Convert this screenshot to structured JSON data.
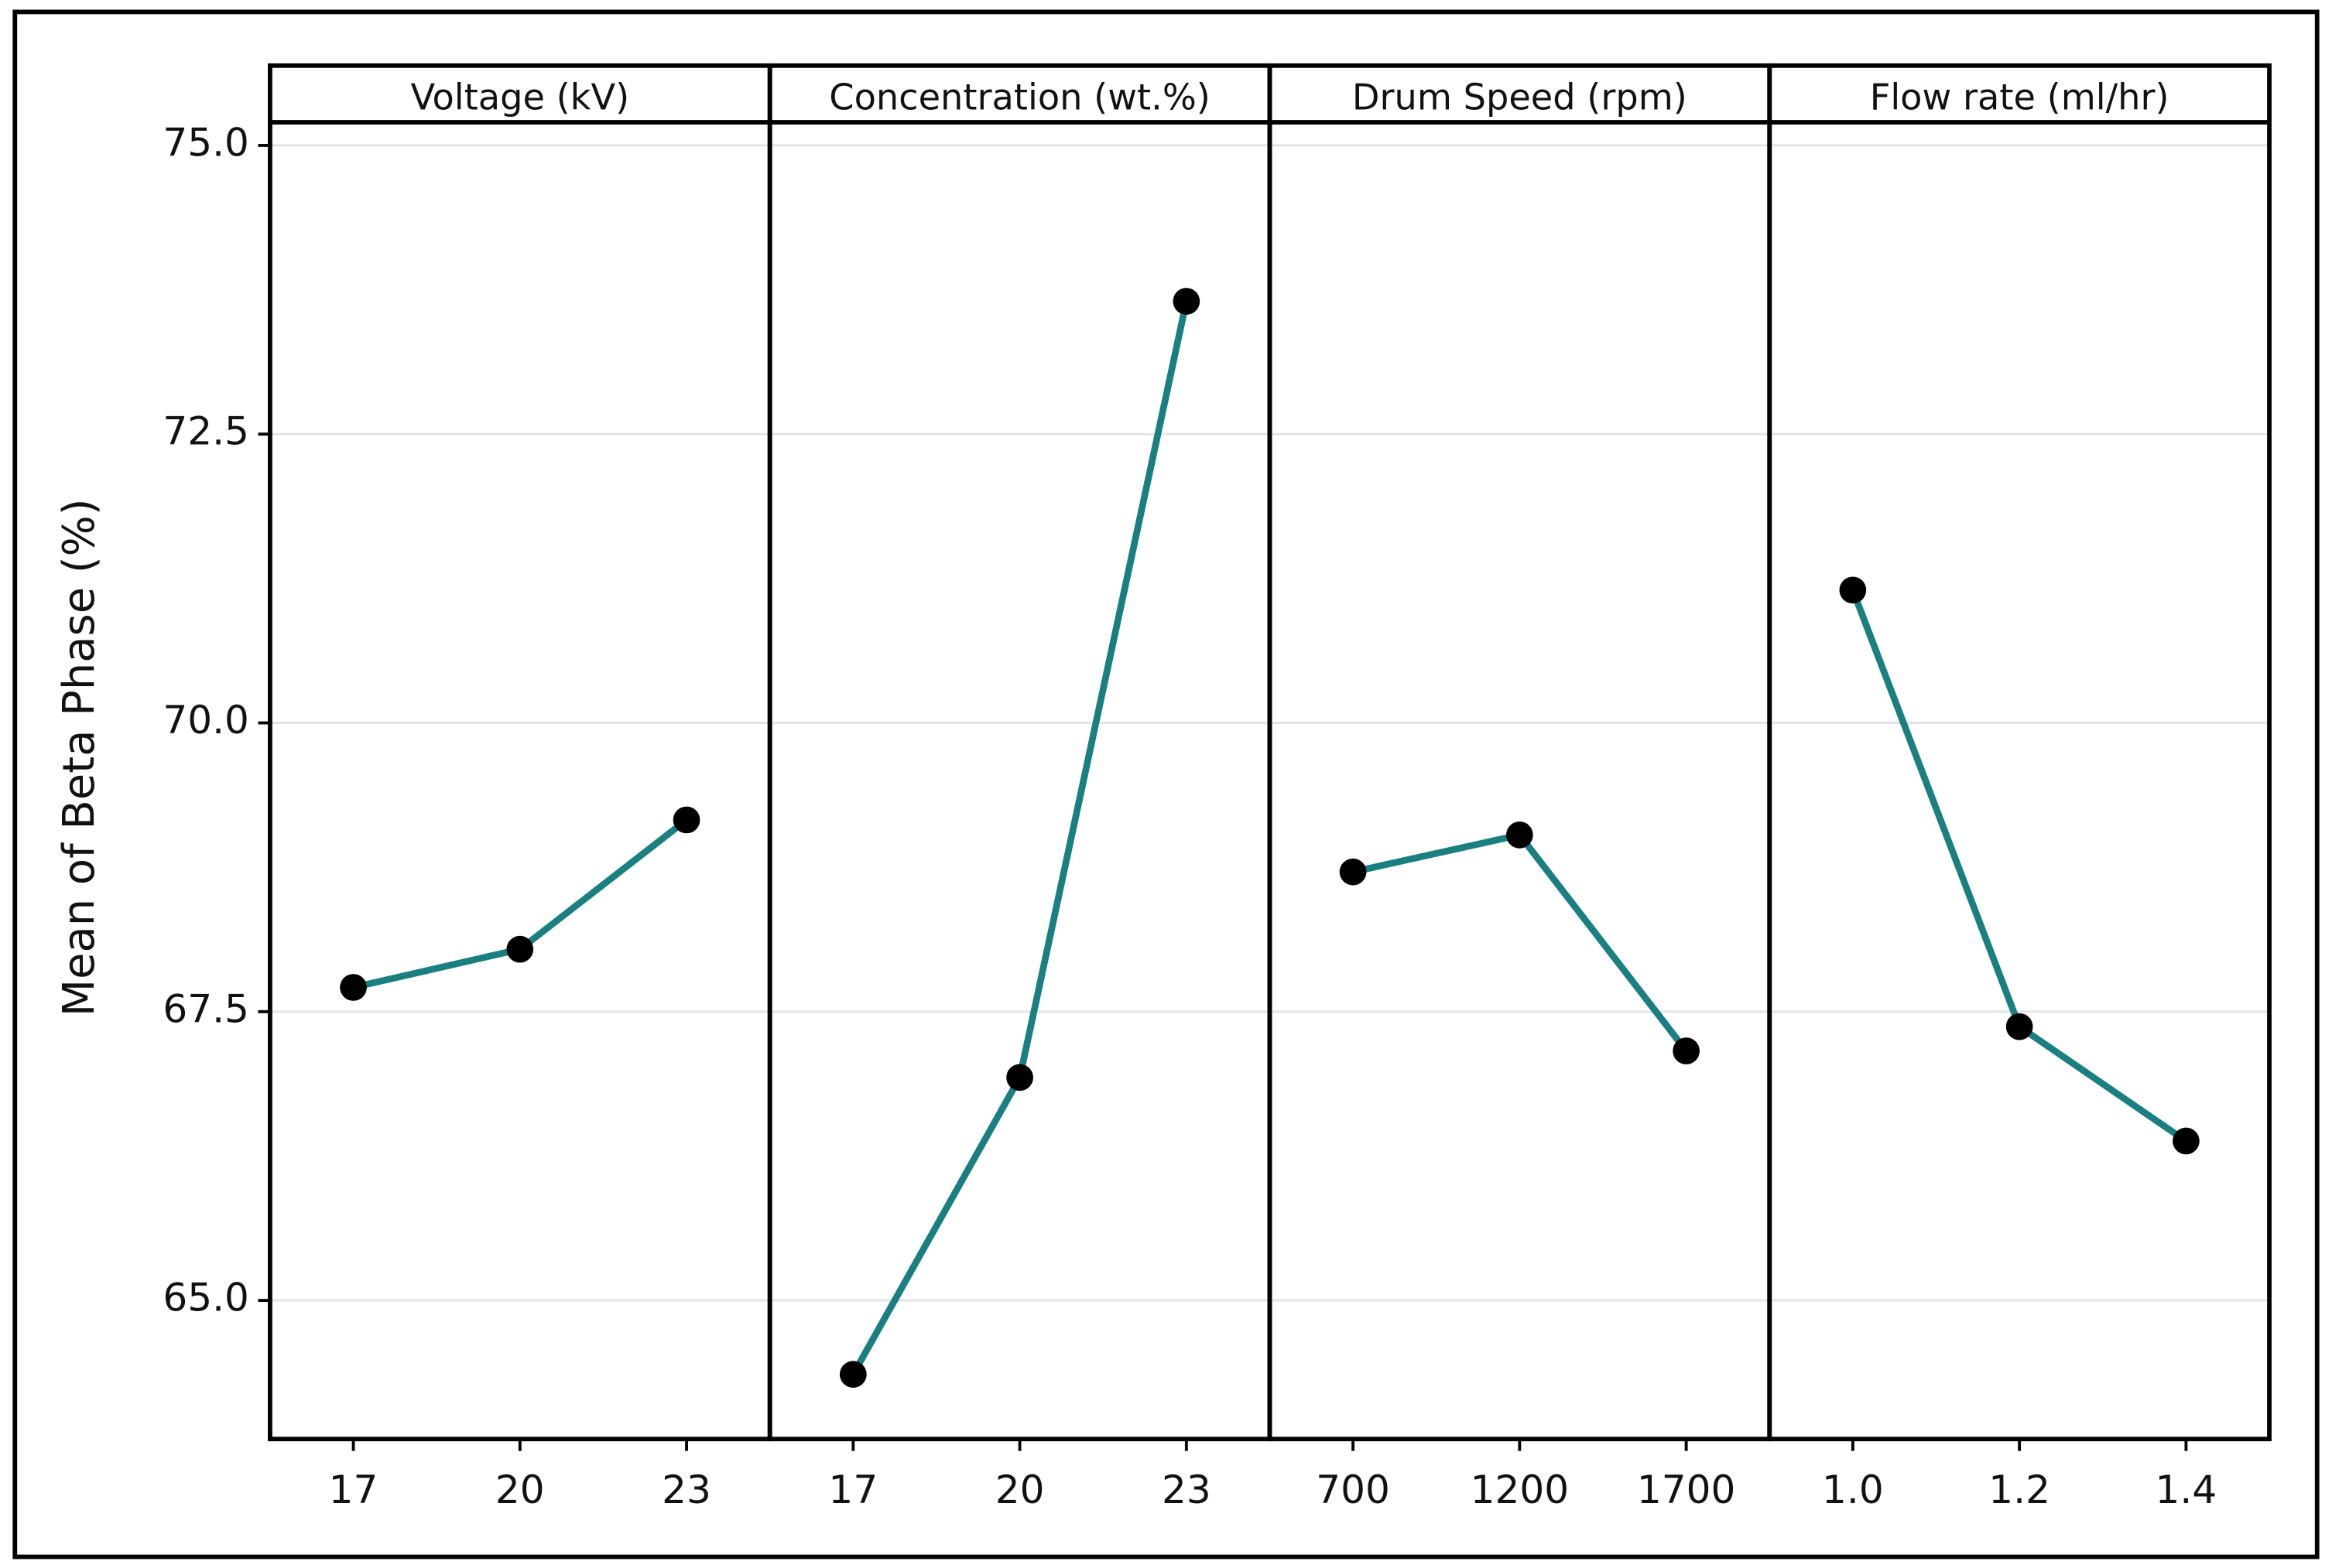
{
  "chart_data": [
    {
      "type": "line",
      "title": "Voltage (kV)",
      "ylabel": "Mean of Beta Phase (%)",
      "categories": [
        "17",
        "20",
        "23"
      ],
      "values": [
        67.71,
        68.04,
        69.16
      ],
      "color": "#1a7f80",
      "marker_color": "#000000",
      "ylim": [
        63.8,
        75.2
      ],
      "yticks": [
        {
          "value": 75,
          "label": "75.0"
        },
        72.5,
        {
          "value": 70,
          "label": "70.0"
        },
        67.5,
        {
          "value": 65,
          "label": "65.0"
        }
      ],
      "grid": true
    },
    {
      "type": "line",
      "title": "Concentration (wt.%)",
      "categories": [
        "17",
        "20",
        "23"
      ],
      "values": [
        64.36,
        66.93,
        73.65
      ],
      "color": "#1a7f80",
      "marker_color": "#000000",
      "ylim": [
        63.8,
        75.2
      ],
      "yticks": [
        {
          "value": 75,
          "label": "75.0"
        },
        72.5,
        {
          "value": 70,
          "label": "70.0"
        },
        67.5,
        {
          "value": 65,
          "label": "65.0"
        }
      ],
      "grid": true
    },
    {
      "type": "line",
      "title": "Drum Speed (rpm)",
      "categories": [
        "700",
        "1200",
        "1700"
      ],
      "values": [
        68.71,
        69.03,
        67.16
      ],
      "color": "#1a7f80",
      "marker_color": "#000000",
      "ylim": [
        63.8,
        75.2
      ],
      "yticks": [
        {
          "value": 75,
          "label": "75.0"
        },
        72.5,
        {
          "value": 70,
          "label": "70.0"
        },
        67.5,
        {
          "value": 65,
          "label": "65.0"
        }
      ],
      "grid": true
    },
    {
      "type": "line",
      "title": "Flow rate (ml/hr)",
      "categories": [
        "1.0",
        "1.2",
        "1.4"
      ],
      "values": [
        71.15,
        67.37,
        66.38
      ],
      "color": "#1a7f80",
      "marker_color": "#000000",
      "ylim": [
        63.8,
        75.2
      ],
      "yticks": [
        {
          "value": 75,
          "label": "75.0"
        },
        72.5,
        {
          "value": 70,
          "label": "70.0"
        },
        67.5,
        {
          "value": 65,
          "label": "65.0"
        }
      ],
      "grid": true
    }
  ]
}
